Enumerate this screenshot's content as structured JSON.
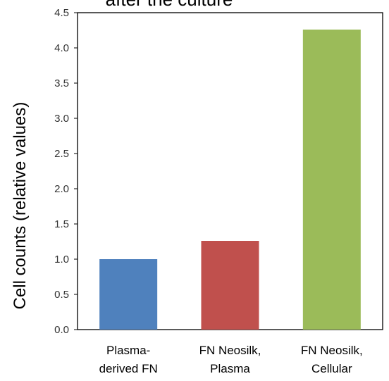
{
  "chart_data": {
    "type": "bar",
    "title": "after the culture",
    "ylabel": "Cell counts (relative values)",
    "xlabel": "",
    "categories": [
      "Plasma-\nderived FN",
      "FN Neosilk,\nPlasma",
      "FN Neosilk,\nCellular"
    ],
    "values": [
      1.0,
      1.26,
      4.26
    ],
    "colors": [
      "#4f81bd",
      "#c0504d",
      "#9bbb59"
    ],
    "ylim": [
      0,
      4.5
    ],
    "yticks": [
      "0.0",
      "0.5",
      "1.0",
      "1.5",
      "2.0",
      "2.5",
      "3.0",
      "3.5",
      "4.0",
      "4.5"
    ],
    "grid": false,
    "legend": false
  }
}
